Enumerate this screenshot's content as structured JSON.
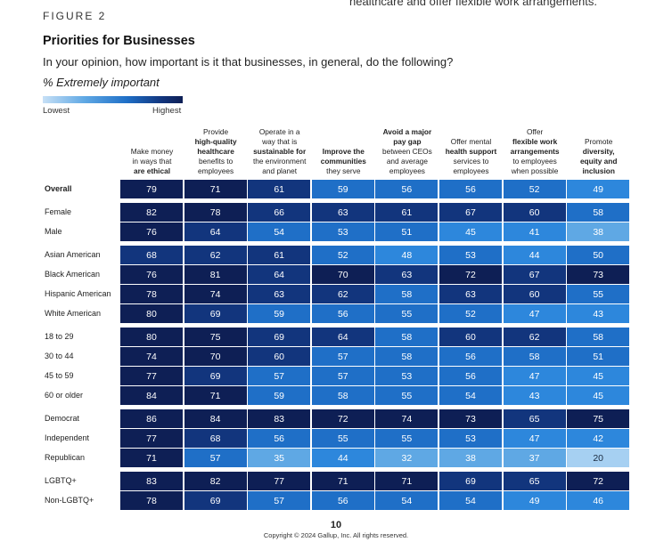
{
  "figure_label": "FIGURE 2",
  "top_cut_text": "healthcare and offer flexible work arrangements.",
  "title": "Priorities for Businesses",
  "subtitle": "In your opinion, how important is it that businesses, in general, do the following?",
  "measure": "% Extremely important",
  "legend": {
    "low": "Lowest",
    "high": "Highest"
  },
  "page_number": "10",
  "copyright": "Copyright © 2024 Gallup, Inc. All rights reserved.",
  "colors": {
    "darkest": "#0e1f55",
    "dark": "#12357d",
    "mid": "#1f6fc7",
    "bright": "#2d87dc",
    "light": "#5fa8e4",
    "lightest": "#a6d0f2"
  },
  "chart_data": {
    "type": "table",
    "columns": [
      [
        "Make money",
        "in ways that",
        "are ethical"
      ],
      [
        "Provide",
        "high-quality",
        "healthcare",
        "benefits to",
        "employees"
      ],
      [
        "Operate in a",
        "way that is",
        "sustainable for",
        "the environment",
        "and planet"
      ],
      [
        "Improve the",
        "communities",
        "they serve"
      ],
      [
        "Avoid a major",
        "pay gap",
        "between CEOs",
        "and average",
        "employees"
      ],
      [
        "Offer mental",
        "health support",
        "services to",
        "employees"
      ],
      [
        "Offer",
        "flexible work",
        "arrangements",
        "to employees",
        "when possible"
      ],
      [
        "Promote",
        "diversity,",
        "equity and",
        "inclusion"
      ]
    ],
    "column_bold_lines": [
      [
        false,
        false,
        true
      ],
      [
        false,
        true,
        true,
        false,
        false
      ],
      [
        false,
        false,
        true,
        false,
        false
      ],
      [
        true,
        true,
        false
      ],
      [
        true,
        true,
        false,
        false,
        false
      ],
      [
        false,
        true,
        false,
        false
      ],
      [
        false,
        true,
        true,
        false,
        false
      ],
      [
        false,
        true,
        true,
        true
      ]
    ],
    "groups": [
      {
        "rows": [
          {
            "label": "Overall",
            "bold": true,
            "values": [
              79,
              71,
              61,
              59,
              56,
              56,
              52,
              49
            ]
          }
        ]
      },
      {
        "rows": [
          {
            "label": "Female",
            "values": [
              82,
              78,
              66,
              63,
              61,
              67,
              60,
              58
            ]
          },
          {
            "label": "Male",
            "values": [
              76,
              64,
              54,
              53,
              51,
              45,
              41,
              38
            ]
          }
        ]
      },
      {
        "rows": [
          {
            "label": "Asian American",
            "values": [
              68,
              62,
              61,
              52,
              48,
              53,
              44,
              50
            ]
          },
          {
            "label": "Black American",
            "values": [
              76,
              81,
              64,
              70,
              63,
              72,
              67,
              73
            ]
          },
          {
            "label": "Hispanic American",
            "values": [
              78,
              74,
              63,
              62,
              58,
              63,
              60,
              55
            ]
          },
          {
            "label": "White American",
            "values": [
              80,
              69,
              59,
              56,
              55,
              52,
              47,
              43
            ]
          }
        ]
      },
      {
        "rows": [
          {
            "label": "18 to 29",
            "values": [
              80,
              75,
              69,
              64,
              58,
              60,
              62,
              58
            ]
          },
          {
            "label": "30 to 44",
            "values": [
              74,
              70,
              60,
              57,
              58,
              56,
              58,
              51
            ]
          },
          {
            "label": "45 to 59",
            "values": [
              77,
              69,
              57,
              57,
              53,
              56,
              47,
              45
            ]
          },
          {
            "label": "60 or older",
            "values": [
              84,
              71,
              59,
              58,
              55,
              54,
              43,
              45
            ]
          }
        ]
      },
      {
        "rows": [
          {
            "label": "Democrat",
            "values": [
              86,
              84,
              83,
              72,
              74,
              73,
              65,
              75
            ]
          },
          {
            "label": "Independent",
            "values": [
              77,
              68,
              56,
              55,
              55,
              53,
              47,
              42
            ]
          },
          {
            "label": "Republican",
            "values": [
              71,
              57,
              35,
              44,
              32,
              38,
              37,
              20
            ]
          }
        ]
      },
      {
        "rows": [
          {
            "label": "LGBTQ+",
            "values": [
              83,
              82,
              77,
              71,
              71,
              69,
              65,
              72
            ]
          },
          {
            "label": "Non-LGBTQ+",
            "values": [
              78,
              69,
              57,
              56,
              54,
              54,
              49,
              46
            ]
          }
        ]
      }
    ]
  }
}
